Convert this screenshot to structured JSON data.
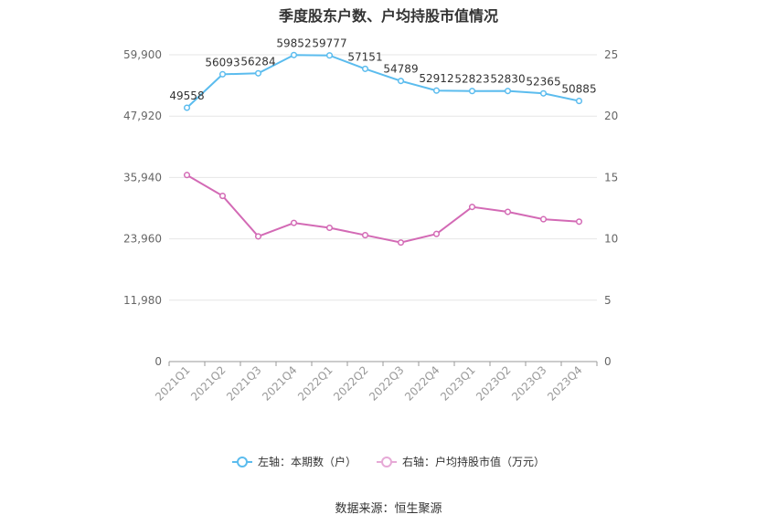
{
  "chart_data": {
    "type": "line",
    "title": "季度股东户数、户均持股市值情况",
    "categories": [
      "2021Q1",
      "2021Q2",
      "2021Q3",
      "2021Q4",
      "2022Q1",
      "2022Q2",
      "2022Q3",
      "2022Q4",
      "2023Q1",
      "2023Q2",
      "2023Q3",
      "2023Q4"
    ],
    "left_axis": {
      "ticks": [
        "0",
        "11,980",
        "23,960",
        "35,940",
        "47,920",
        "59,900"
      ],
      "min": 0,
      "max": 59900
    },
    "right_axis": {
      "ticks": [
        "0",
        "5",
        "10",
        "15",
        "20",
        "25"
      ],
      "min": 0,
      "max": 25
    },
    "series": [
      {
        "name": "左轴：本期数（户）",
        "axis": "left",
        "color": "#5bbcee",
        "show_labels": true,
        "values": [
          49558,
          56093,
          56284,
          59852,
          59777,
          57151,
          54789,
          52912,
          52823,
          52830,
          52365,
          50885
        ]
      },
      {
        "name": "右轴：户均持股市值（万元）",
        "axis": "right",
        "color": "#d36ab5",
        "show_labels": false,
        "values": [
          15.2,
          13.5,
          10.2,
          11.3,
          10.9,
          10.3,
          9.7,
          10.4,
          12.6,
          12.2,
          11.6,
          11.4
        ]
      }
    ],
    "grid": true,
    "legend_position": "bottom"
  },
  "footer": {
    "source": "数据来源：恒生聚源"
  }
}
